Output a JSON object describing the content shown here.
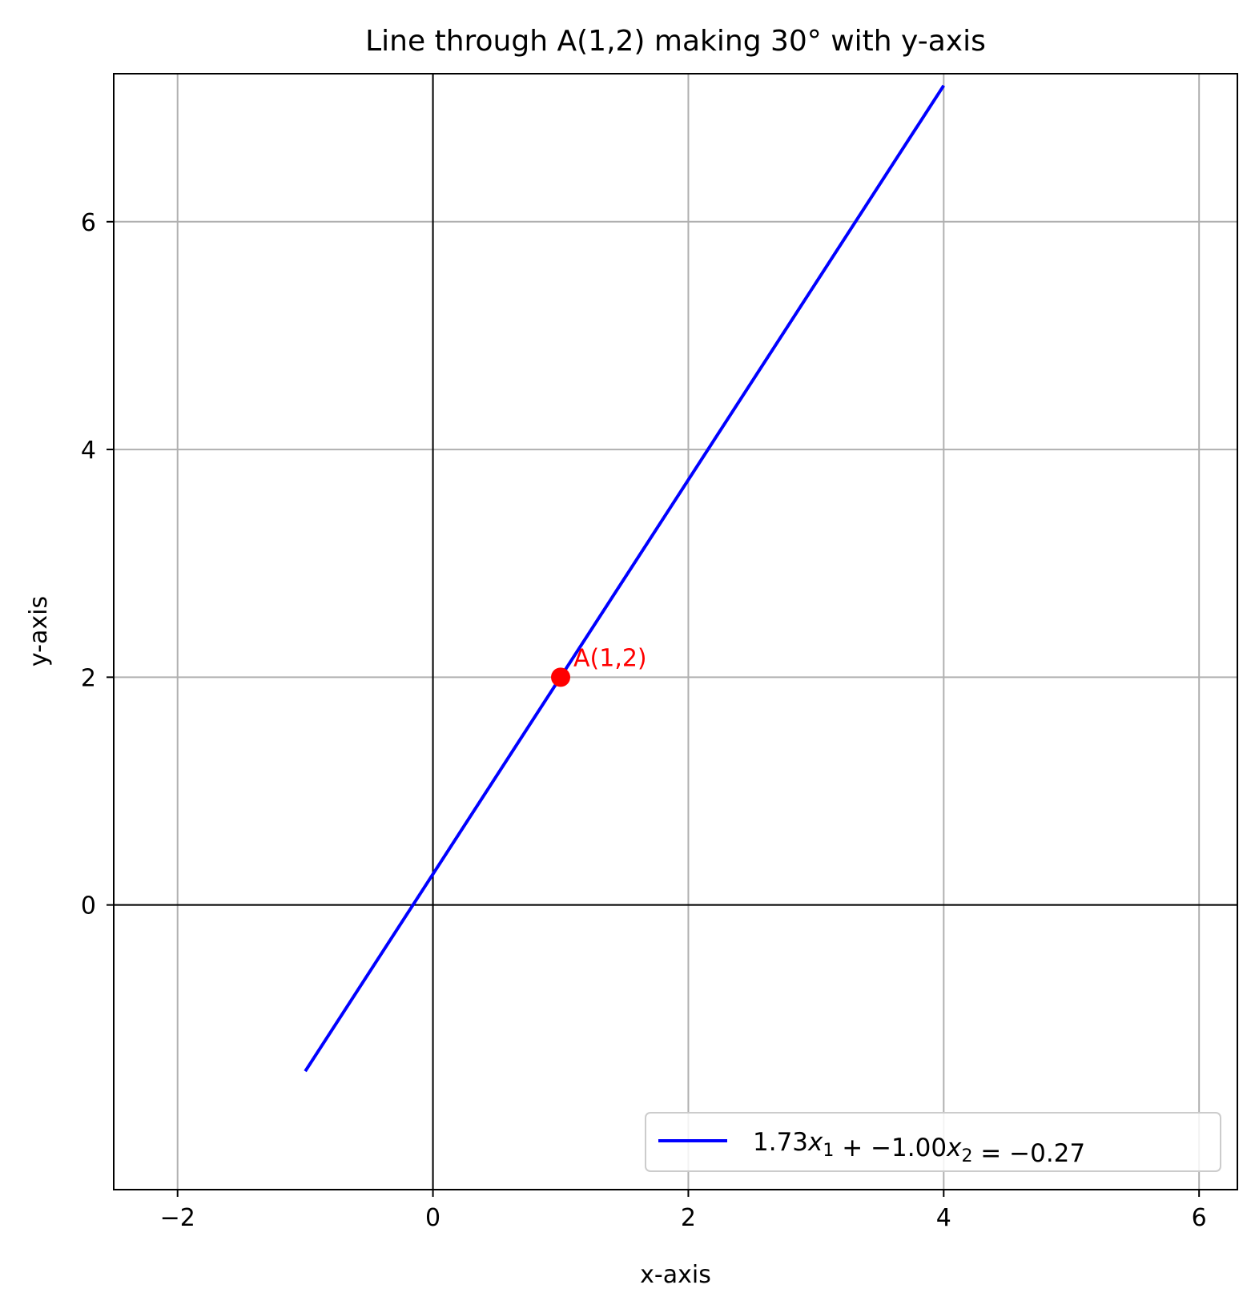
{
  "chart_data": {
    "type": "line",
    "title": "Line through A(1,2) making 30° with y-axis",
    "xlabel": "x-axis",
    "ylabel": "y-axis",
    "xlim": [
      -2.5,
      6.3
    ],
    "ylim": [
      -2.5,
      7.3
    ],
    "xticks": [
      -2,
      0,
      2,
      4,
      6
    ],
    "yticks": [
      0,
      2,
      4,
      6
    ],
    "xtick_labels": [
      "−2",
      "0",
      "2",
      "4",
      "6"
    ],
    "ytick_labels": [
      "0",
      "2",
      "4",
      "6"
    ],
    "grid": true,
    "reference_lines": {
      "x": 0,
      "y": 0,
      "color": "#000000"
    },
    "series": [
      {
        "name": "1.73x₁ + −1.00x₂ = −0.27",
        "color": "#0000ff",
        "x": [
          -1,
          4
        ],
        "y": [
          -1.46,
          7.196
        ]
      }
    ],
    "points": [
      {
        "x": 1,
        "y": 2,
        "label": "A(1,2)",
        "color": "#ff0000"
      }
    ],
    "legend": {
      "placement": "lower-right",
      "parts": [
        {
          "text": "1.73",
          "italic": false
        },
        {
          "text": "x",
          "italic": true,
          "sub": "1"
        },
        {
          "text": " + −1.00",
          "italic": false
        },
        {
          "text": "x",
          "italic": true,
          "sub": "2"
        },
        {
          "text": " = −0.27",
          "italic": false
        }
      ]
    }
  }
}
